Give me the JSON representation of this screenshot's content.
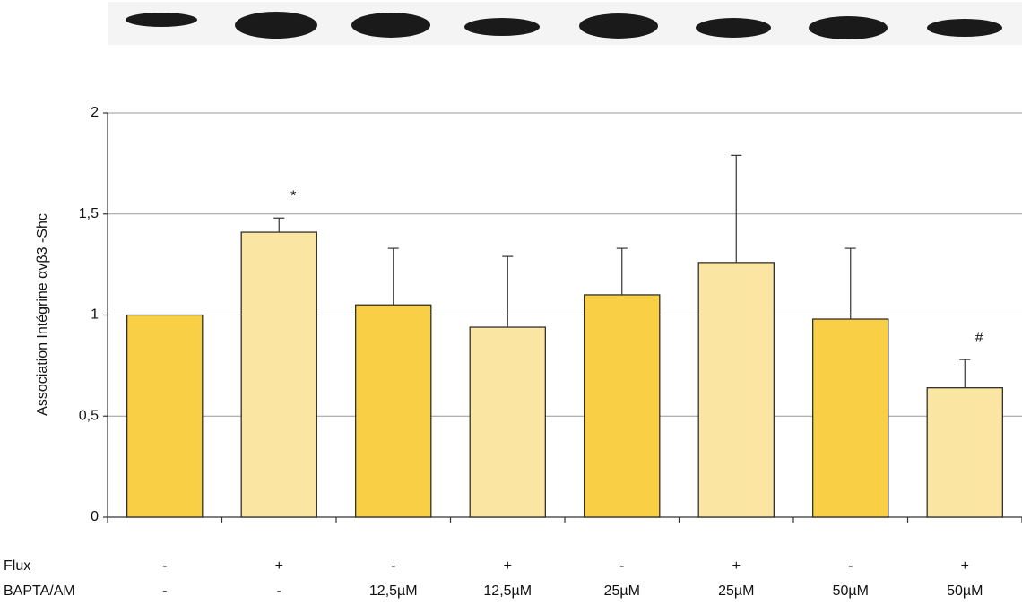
{
  "chart_data": {
    "type": "bar",
    "y_label": "Association Intégrine αvβ3 -Shc",
    "values": [
      1.0,
      1.41,
      1.05,
      0.94,
      1.1,
      1.26,
      0.98,
      0.64
    ],
    "errors": [
      null,
      0.07,
      0.28,
      0.35,
      0.23,
      0.53,
      0.35,
      0.14
    ],
    "colors": [
      "#f9cf45",
      "#fbe5a3",
      "#f9cf45",
      "#fbe5a3",
      "#f9cf45",
      "#fbe5a3",
      "#f9cf45",
      "#fbe5a3"
    ],
    "annotations": [
      {
        "index": 1,
        "text": "*"
      },
      {
        "index": 7,
        "text": "#"
      }
    ],
    "conditions": [
      {
        "name": "Flux",
        "values": [
          "-",
          "+",
          "-",
          "+",
          "-",
          "+",
          "-",
          "+"
        ]
      },
      {
        "name": "BAPTA/AM",
        "values": [
          "-",
          "-",
          "12,5µM",
          "12,5µM",
          "25µM",
          "25µM",
          "50µM",
          "50µM"
        ]
      }
    ],
    "ylim": [
      0,
      2
    ],
    "yticks": [
      0,
      {
        "value": 0.5,
        "label": "0,5"
      },
      1,
      {
        "value": 1.5,
        "label": "1,5"
      },
      2
    ],
    "grid": true
  }
}
